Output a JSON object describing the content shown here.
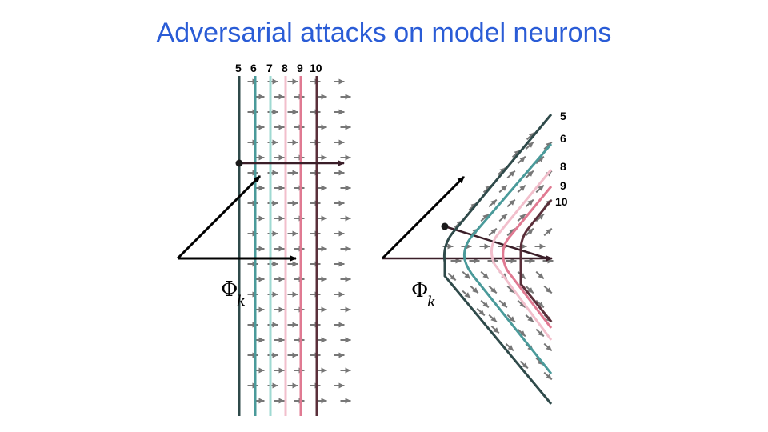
{
  "title": "Adversarial attacks on model neurons",
  "left_panel": {
    "level_labels": [
      "5",
      "6",
      "7",
      "8",
      "9",
      "10"
    ],
    "phi_symbol": "Φ",
    "phi_subscript": "k"
  },
  "right_panel": {
    "level_labels": [
      "5",
      "6",
      "8",
      "9",
      "10"
    ],
    "phi_symbol": "Φ",
    "phi_subscript": "k"
  },
  "colors": {
    "title": "#2a5cd6",
    "level_5": "#2f4a4a",
    "level_6": "#4a9a9a",
    "level_7": "#9fd9d2",
    "level_8": "#f2bfcc",
    "level_9": "#e07a92",
    "level_10": "#5a2f3a",
    "field_arrow": "#777777"
  }
}
